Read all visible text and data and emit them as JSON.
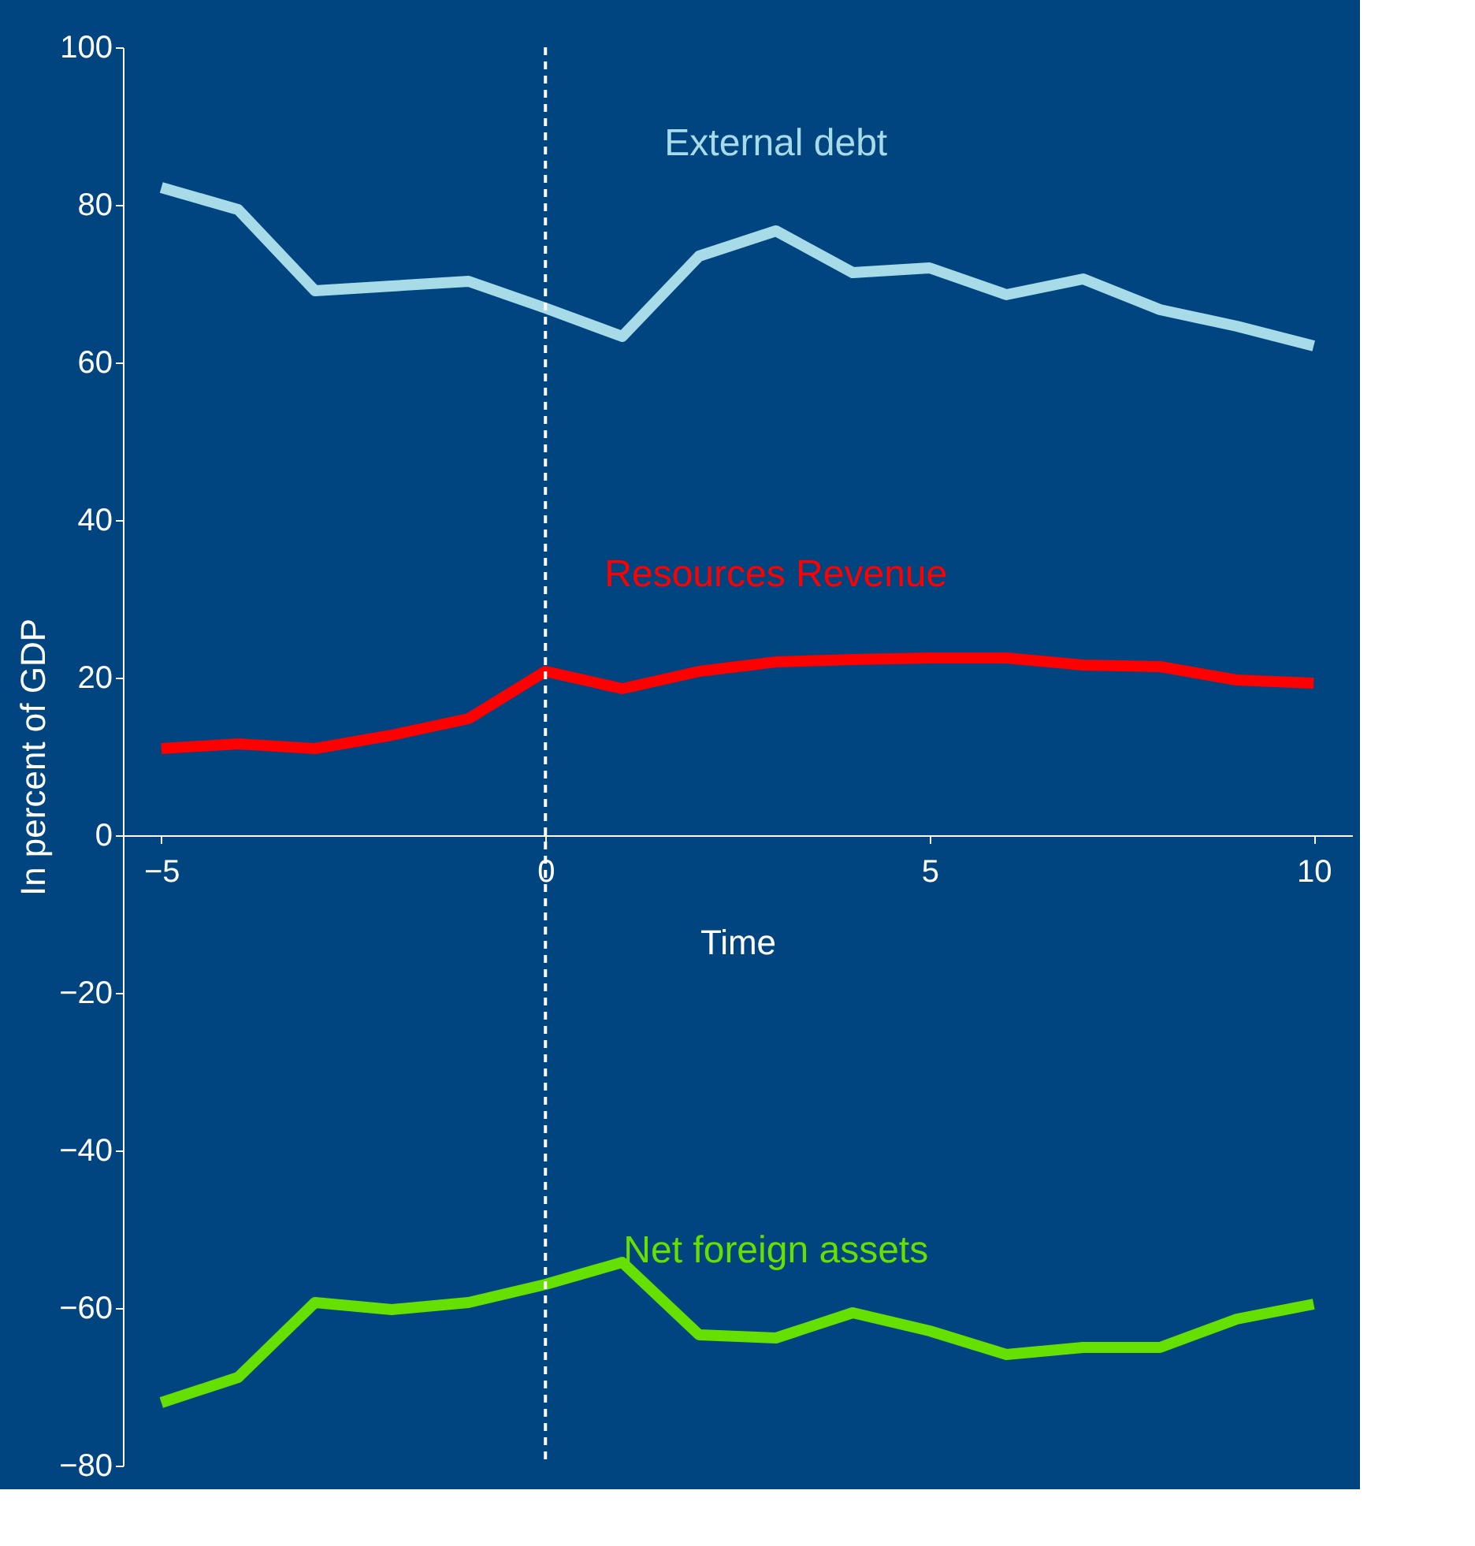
{
  "chart_data": {
    "type": "line",
    "xlabel": "Time",
    "ylabel": "In percent of GDP",
    "x": [
      -5,
      -4,
      -3,
      -2,
      -1,
      0,
      1,
      2,
      3,
      4,
      5,
      6,
      7,
      8,
      9,
      10
    ],
    "series": [
      {
        "name": "External debt",
        "color": "#a8dbe8",
        "values": [
          82.2,
          79.4,
          69.1,
          69.7,
          70.3,
          66.9,
          63.3,
          73.5,
          76.7,
          71.4,
          72,
          68.6,
          70.6,
          66.7,
          64.6,
          62.1
        ]
      },
      {
        "name": "Resources Revenue",
        "color": "#ff0000",
        "values": [
          11,
          11.6,
          11,
          12.7,
          14.8,
          20.8,
          18.6,
          20.8,
          22,
          22.3,
          22.5,
          22.5,
          21.6,
          21.4,
          19.7,
          19.3
        ]
      },
      {
        "name": "Net foreign assets",
        "color": "#66e000",
        "values": [
          -72,
          -68.8,
          -59.3,
          -60.2,
          -59.3,
          -57,
          -54.2,
          -63.4,
          -63.8,
          -60.6,
          -62.9,
          -65.9,
          -65,
          -65,
          -61.4,
          -59.5
        ]
      }
    ],
    "xlim": [
      -5.5,
      10.5
    ],
    "xticks": [
      -5,
      0,
      5,
      10
    ],
    "ylim": [
      -80,
      100
    ],
    "yticks": [
      -80,
      -60,
      -40,
      -20,
      0,
      20,
      40,
      60,
      80,
      100
    ],
    "ref_lines": [
      {
        "axis": "x",
        "value": 0,
        "color": "#ffffff",
        "line_style": "dashed"
      }
    ],
    "grid": false,
    "legend": false,
    "marker": "none",
    "line_style": "solid"
  }
}
